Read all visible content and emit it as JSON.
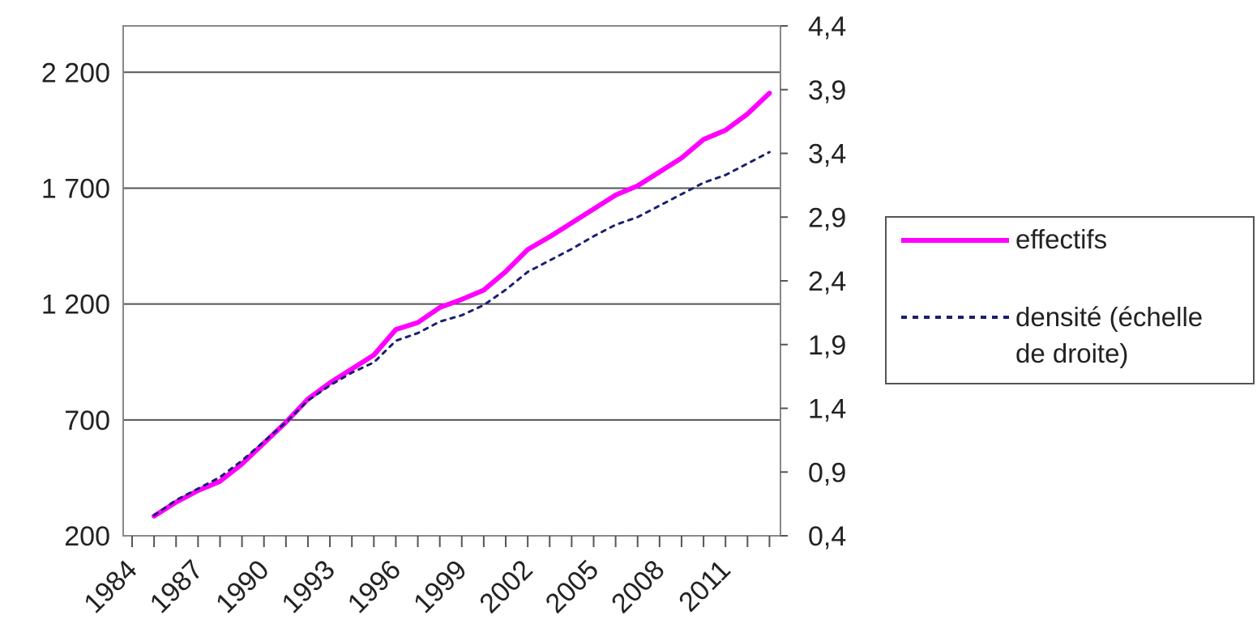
{
  "chart_data": {
    "type": "line",
    "x": [
      1985,
      1986,
      1987,
      1988,
      1989,
      1990,
      1991,
      1992,
      1993,
      1994,
      1995,
      1996,
      1997,
      1998,
      1999,
      2000,
      2001,
      2002,
      2003,
      2004,
      2005,
      2006,
      2007,
      2008,
      2009,
      2010,
      2011,
      2012,
      2013
    ],
    "x_ticks": [
      "1984",
      "1987",
      "1990",
      "1993",
      "1996",
      "1999",
      "2002",
      "2005",
      "2008",
      "2011"
    ],
    "ylim": [
      200,
      2400
    ],
    "y_ticks": [
      "200",
      "700",
      "1 200",
      "1 700",
      "2 200"
    ],
    "y2lim": [
      0.4,
      4.4
    ],
    "y2_ticks": [
      "0,4",
      "0,9",
      "1,4",
      "1,9",
      "2,4",
      "2,9",
      "3,4",
      "3,9",
      "4,4"
    ],
    "grid": "horizontal major gridlines",
    "legend_position": "right",
    "series": [
      {
        "name": "effectifs",
        "axis": "left",
        "color": "#ff00ff",
        "style": "solid",
        "values": [
          285,
          345,
          395,
          435,
          510,
          600,
          690,
          790,
          860,
          920,
          980,
          1090,
          1120,
          1185,
          1220,
          1260,
          1340,
          1435,
          1490,
          1550,
          1610,
          1670,
          1710,
          1770,
          1830,
          1910,
          1950,
          2020,
          2110
        ]
      },
      {
        "name": "densité (échelle de droite)",
        "axis": "right",
        "color": "#1a1f6e",
        "style": "dotted",
        "values": [
          0.56,
          0.68,
          0.77,
          0.86,
          0.99,
          1.14,
          1.29,
          1.46,
          1.58,
          1.68,
          1.76,
          1.93,
          1.99,
          2.08,
          2.13,
          2.21,
          2.33,
          2.47,
          2.56,
          2.65,
          2.75,
          2.84,
          2.9,
          2.99,
          3.08,
          3.17,
          3.23,
          3.32,
          3.41
        ]
      }
    ]
  }
}
